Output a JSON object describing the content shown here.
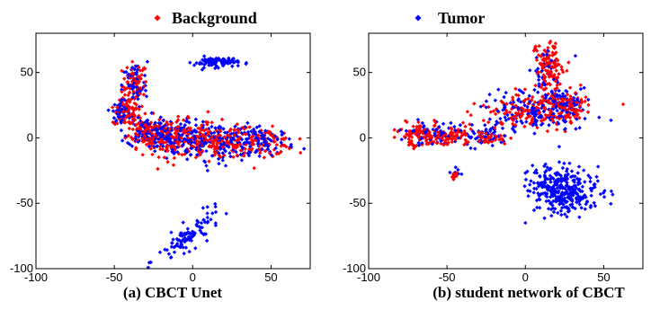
{
  "legend": [
    {
      "label": "Background",
      "color": "#ff0000",
      "marker": "diamond"
    },
    {
      "label": "Tumor",
      "color": "#0000ff",
      "marker": "diamond"
    }
  ],
  "chart_data": [
    {
      "type": "scatter",
      "caption": "(a) CBCT Unet",
      "xlim": [
        -100,
        75
      ],
      "ylim": [
        -100,
        80
      ],
      "xticks": [
        -100,
        -50,
        0,
        50
      ],
      "yticks": [
        -100,
        -50,
        0,
        50
      ],
      "series": [
        {
          "name": "Background",
          "color": "#ff0000",
          "clusters": [
            {
              "cx": -37,
              "cy": 40,
              "sx": 4,
              "sy": 9,
              "n": 70
            },
            {
              "cx": -42,
              "cy": 18,
              "sx": 4,
              "sy": 5,
              "n": 60
            },
            {
              "cx": -30,
              "cy": 5,
              "sx": 6,
              "sy": 6,
              "n": 90
            },
            {
              "cx": -12,
              "cy": 0,
              "sx": 10,
              "sy": 7,
              "n": 130
            },
            {
              "cx": 15,
              "cy": -3,
              "sx": 12,
              "sy": 7,
              "n": 130
            },
            {
              "cx": 45,
              "cy": -3,
              "sx": 10,
              "sy": 5,
              "n": 90
            }
          ]
        },
        {
          "name": "Tumor",
          "color": "#0000ff",
          "clusters": [
            {
              "cx": -37,
              "cy": 40,
              "sx": 4,
              "sy": 9,
              "n": 60
            },
            {
              "cx": -45,
              "cy": 20,
              "sx": 3,
              "sy": 5,
              "n": 60
            },
            {
              "cx": -30,
              "cy": 5,
              "sx": 6,
              "sy": 6,
              "n": 90
            },
            {
              "cx": -12,
              "cy": 0,
              "sx": 10,
              "sy": 7,
              "n": 130
            },
            {
              "cx": 15,
              "cy": -3,
              "sx": 12,
              "sy": 7,
              "n": 130
            },
            {
              "cx": 45,
              "cy": -3,
              "sx": 10,
              "sy": 5,
              "n": 90
            },
            {
              "cx": 15,
              "cy": 58,
              "sx": 7,
              "sy": 2,
              "n": 90
            },
            {
              "cx": -2,
              "cy": -75,
              "sx": 10,
              "sy": 5,
              "n": 100,
              "slope": 0.8
            }
          ]
        }
      ]
    },
    {
      "type": "scatter",
      "caption": "(b) student network of CBCT",
      "xlim": [
        -100,
        75
      ],
      "ylim": [
        -100,
        80
      ],
      "xticks": [
        -100,
        -50,
        0,
        50
      ],
      "yticks": [
        -100,
        -50,
        0,
        50
      ],
      "series": [
        {
          "name": "Background",
          "color": "#ff0000",
          "clusters": [
            {
              "cx": -65,
              "cy": 2,
              "sx": 7,
              "sy": 4,
              "n": 120
            },
            {
              "cx": -45,
              "cy": 2,
              "sx": 6,
              "sy": 4,
              "n": 60
            },
            {
              "cx": -20,
              "cy": 0,
              "sx": 6,
              "sy": 3,
              "n": 40
            },
            {
              "cx": 15,
              "cy": 55,
              "sx": 5,
              "sy": 10,
              "n": 130
            },
            {
              "cx": 5,
              "cy": 20,
              "sx": 15,
              "sy": 7,
              "n": 160
            },
            {
              "cx": 28,
              "cy": 26,
              "sx": 6,
              "sy": 5,
              "n": 70
            },
            {
              "cx": -45,
              "cy": -29,
              "sx": 1.5,
              "sy": 1.5,
              "n": 10
            }
          ]
        },
        {
          "name": "Tumor",
          "color": "#0000ff",
          "clusters": [
            {
              "cx": -60,
              "cy": 4,
              "sx": 10,
              "sy": 4,
              "n": 60
            },
            {
              "cx": -25,
              "cy": 2,
              "sx": 8,
              "sy": 4,
              "n": 50
            },
            {
              "cx": 5,
              "cy": 18,
              "sx": 15,
              "sy": 8,
              "n": 150
            },
            {
              "cx": 28,
              "cy": 27,
              "sx": 6,
              "sy": 5,
              "n": 60
            },
            {
              "cx": 13,
              "cy": 50,
              "sx": 5,
              "sy": 10,
              "n": 40
            },
            {
              "cx": 25,
              "cy": -40,
              "sx": 11,
              "sy": 9,
              "n": 320
            },
            {
              "cx": -45,
              "cy": -25,
              "sx": 1.5,
              "sy": 2,
              "n": 6
            }
          ]
        }
      ]
    }
  ]
}
